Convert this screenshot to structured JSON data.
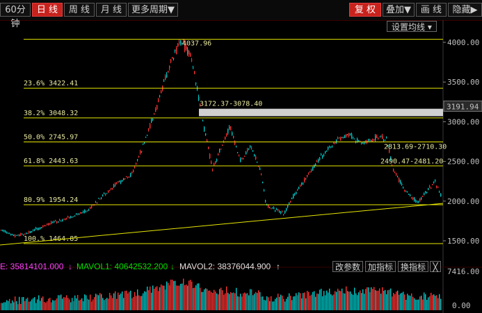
{
  "toolbar": {
    "tabs": [
      {
        "label": "60分钟",
        "active": false
      },
      {
        "label": "日 线",
        "active": true
      },
      {
        "label": "周 线",
        "active": false
      },
      {
        "label": "月 线",
        "active": false
      },
      {
        "label": "更多周期▼",
        "active": false
      }
    ],
    "right": [
      {
        "label": "复 权",
        "red": true
      },
      {
        "label": "叠加▼",
        "red": false
      },
      {
        "label": "画 线",
        "red": false
      },
      {
        "label": "隐藏▶",
        "red": false
      }
    ]
  },
  "settings_ma_label": "设置均线 ▾",
  "price_axis": {
    "ticks": [
      "4000.00",
      "3500.00",
      "3000.00",
      "2500.00",
      "2000.00",
      "1500.00"
    ],
    "current_price": "3191.94"
  },
  "fibonacci": [
    {
      "label": "23.6% 3422.41"
    },
    {
      "label": "38.2% 3048.32"
    },
    {
      "label": "50.0% 2745.97"
    },
    {
      "label": "61.8% 2443.63"
    },
    {
      "label": "80.9% 1954.24"
    },
    {
      "label": "100.% 1464.85"
    }
  ],
  "annotations": {
    "high": "4037.96",
    "gap1": "3172.37-3078.40",
    "gap2": "2813.69-2710.30",
    "gap3": "2490.47-2481.20"
  },
  "volume": {
    "vol_text": "E: 35814101.000",
    "vol_arrow": "↓",
    "mavol1_text": "MAVOL1: 40642532.200",
    "mavol1_arrow": "↓",
    "mavol2_text": "MAVOL2: 38376044.900",
    "mavol2_arrow": "↑",
    "buttons": [
      "改参数",
      "加指标",
      "换指标",
      "╳"
    ],
    "axis_top": "7416.00",
    "axis_bottom": "0.00"
  },
  "colors": {
    "up": "#ff3232",
    "down": "#00c8c8",
    "fib": "#e8e800",
    "gap": "#d0d0d0",
    "trend": "#e8e800"
  }
}
